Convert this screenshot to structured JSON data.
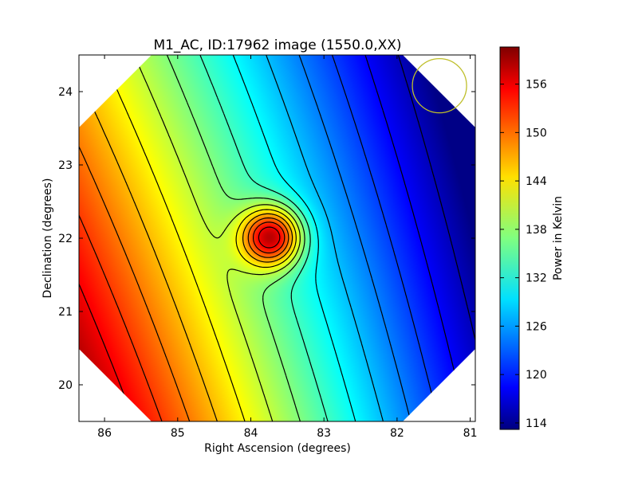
{
  "chart_data": {
    "type": "heatmap",
    "title": "M1_AC, ID:17962 image (1550.0,XX)",
    "xlabel": "Right Ascension (degrees)",
    "ylabel": "Declination (degrees)",
    "colorbar_label": "Power in Kelvin",
    "colormap": "jet",
    "xlim": [
      86.35,
      80.93
    ],
    "ylim": [
      19.5,
      24.5
    ],
    "x_ticks": [
      86,
      85,
      84,
      83,
      82,
      81
    ],
    "y_ticks": [
      20,
      21,
      22,
      23,
      24
    ],
    "colorbar_range": [
      113.2,
      160.6
    ],
    "colorbar_ticks": [
      114,
      120,
      126,
      132,
      138,
      144,
      150,
      156
    ],
    "footprint": "diamond-shaped image footprint (white outside)",
    "hotspot": {
      "ra": 83.72,
      "dec": 22.02,
      "peak_kelvin": 155
    },
    "max_region": {
      "ra": 86.3,
      "dec": 21.6,
      "value_kelvin": 160
    },
    "min_region": {
      "ra": 81.2,
      "dec": 23.0,
      "value_kelvin": 114
    },
    "contour_count": 17,
    "beam_circle": {
      "ra": 81.42,
      "dec": 24.08,
      "color": "#bfbf2a"
    },
    "contour_color": "#000000"
  }
}
